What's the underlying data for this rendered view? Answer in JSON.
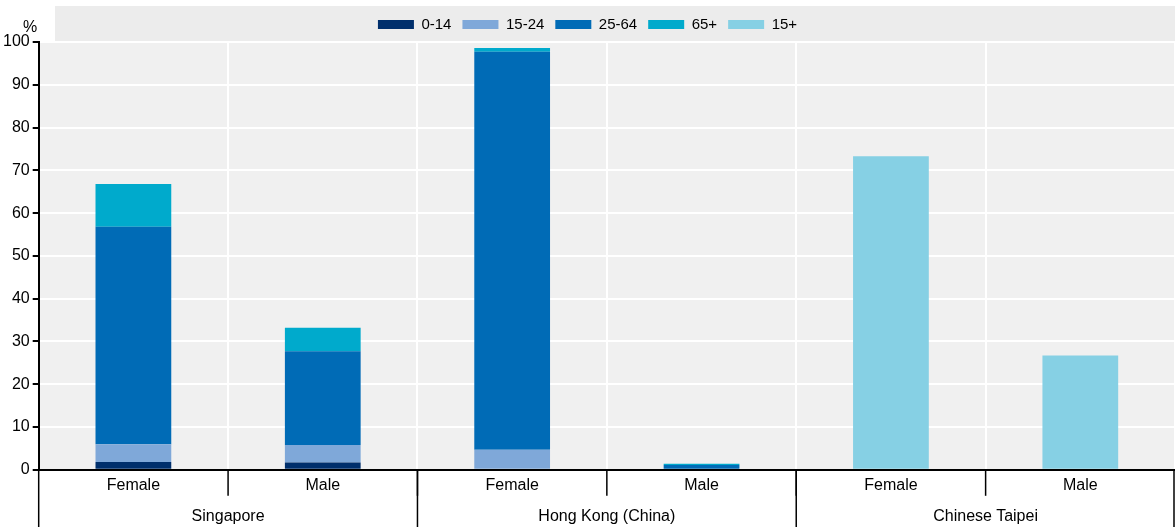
{
  "chart_data": {
    "type": "bar",
    "stacked": true,
    "ylabel": "%",
    "categories": [
      "Female",
      "Male",
      "Female",
      "Male",
      "Female",
      "Male"
    ],
    "annotations": [
      "Singapore",
      "Hong Kong (China)",
      "Chinese Taipei"
    ],
    "series": [
      {
        "name": "0-14",
        "color": "#002f6c",
        "values": [
          1.8,
          1.7,
          null,
          null,
          null,
          null
        ]
      },
      {
        "name": "15-24",
        "color": "#7fa8d9",
        "values": [
          4.2,
          4.1,
          4.7,
          null,
          null,
          null
        ]
      },
      {
        "name": "25-64",
        "color": "#006bb6",
        "values": [
          50.8,
          21.9,
          93,
          1.1,
          null,
          null
        ]
      },
      {
        "name": "65+",
        "color": "#00aacc",
        "values": [
          10,
          5.5,
          0.9,
          0.3,
          null,
          null
        ]
      },
      {
        "name": "15+",
        "color": "#86d0e4",
        "values": [
          null,
          null,
          null,
          null,
          73.3,
          26.7
        ]
      }
    ],
    "ylim": [
      0,
      100
    ],
    "yticks": [
      0,
      10,
      20,
      30,
      40,
      50,
      60,
      70,
      80,
      90,
      100
    ],
    "grid": true,
    "legend": "top"
  }
}
